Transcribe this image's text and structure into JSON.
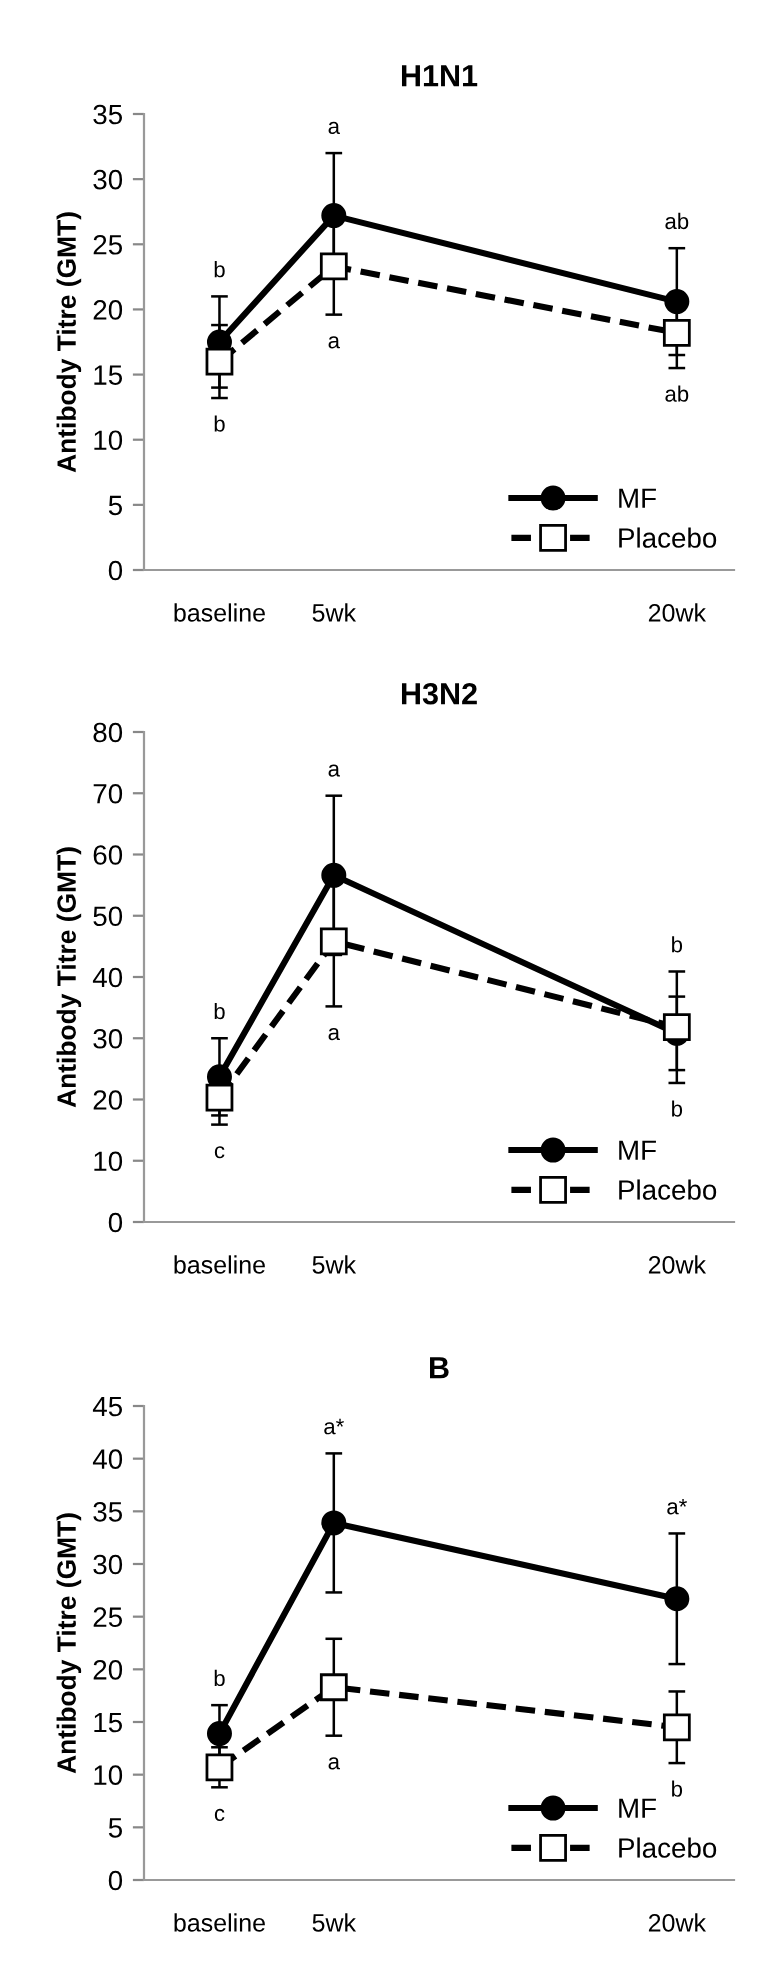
{
  "chart_data": [
    {
      "type": "line",
      "title": "H1N1",
      "ylabel": "Antibody Titre (GMT)",
      "x": [
        0,
        5,
        20
      ],
      "xlim": [
        -3.3,
        22.5
      ],
      "xticks": [
        {
          "value": 0,
          "label": "baseline"
        },
        {
          "value": 5,
          "label": "5wk"
        },
        {
          "value": 20,
          "label": "20wk"
        }
      ],
      "ylim": [
        0,
        35
      ],
      "yticks": [
        0,
        5,
        10,
        15,
        20,
        25,
        30,
        35
      ],
      "grid": false,
      "legend": "bottom right",
      "series": [
        {
          "name": "MF",
          "color": "#000000",
          "marker": "circle",
          "line_style": "solid",
          "values": [
            17.5,
            27.2,
            20.6
          ],
          "errors": [
            3.5,
            4.8,
            4.1
          ]
        },
        {
          "name": "Placebo",
          "color": "#000000",
          "marker": "square",
          "line_style": "dashed",
          "values": [
            16.0,
            23.3,
            18.2
          ],
          "errors": [
            2.8,
            3.7,
            2.7
          ]
        }
      ],
      "annotations": [
        "b",
        "b",
        "a",
        "a",
        "ab",
        "ab"
      ]
    },
    {
      "type": "line",
      "title": "H3N2",
      "ylabel": "Antibody Titre (GMT)",
      "x": [
        0,
        5,
        20
      ],
      "xlim": [
        -3.3,
        22.5
      ],
      "xticks": [
        {
          "value": 0,
          "label": "baseline"
        },
        {
          "value": 5,
          "label": "5wk"
        },
        {
          "value": 20,
          "label": "20wk"
        }
      ],
      "ylim": [
        0,
        80
      ],
      "yticks": [
        0,
        10,
        20,
        30,
        40,
        50,
        60,
        70,
        80
      ],
      "grid": false,
      "legend": "bottom right",
      "series": [
        {
          "name": "MF",
          "color": "#000000",
          "marker": "circle",
          "line_style": "solid",
          "values": [
            23.7,
            56.6,
            30.8
          ],
          "errors": [
            6.3,
            13,
            6
          ]
        },
        {
          "name": "Placebo",
          "color": "#000000",
          "marker": "square",
          "line_style": "dashed",
          "values": [
            20.3,
            45.8,
            31.8
          ],
          "errors": [
            4.4,
            10.6,
            9.1
          ]
        }
      ],
      "annotations": [
        "b",
        "c",
        "a",
        "a",
        "b",
        "b"
      ]
    },
    {
      "type": "line",
      "title": "B",
      "ylabel": "Antibody Titre (GMT)",
      "x": [
        0,
        5,
        20
      ],
      "xlim": [
        -3.3,
        22.5
      ],
      "xticks": [
        {
          "value": 0,
          "label": "baseline"
        },
        {
          "value": 5,
          "label": "5wk"
        },
        {
          "value": 20,
          "label": "20wk"
        }
      ],
      "ylim": [
        0,
        45
      ],
      "yticks": [
        0,
        5,
        10,
        15,
        20,
        25,
        30,
        35,
        40,
        45
      ],
      "grid": false,
      "legend": "bottom right",
      "series": [
        {
          "name": "MF",
          "color": "#000000",
          "marker": "circle",
          "line_style": "solid",
          "values": [
            13.9,
            33.9,
            26.7
          ],
          "errors": [
            2.7,
            6.6,
            6.2
          ]
        },
        {
          "name": "Placebo",
          "color": "#000000",
          "marker": "square",
          "line_style": "dashed",
          "values": [
            10.7,
            18.3,
            14.5
          ],
          "errors": [
            1.9,
            4.6,
            3.4
          ]
        }
      ],
      "annotations": [
        "b",
        "c",
        "a*",
        "a",
        "a*",
        "b"
      ]
    }
  ]
}
